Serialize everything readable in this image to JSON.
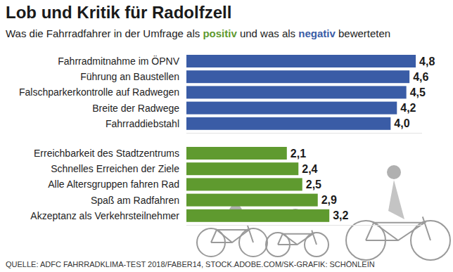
{
  "title": "Lob und Kritik für Radolfzell",
  "subtitle": [
    {
      "text": "Was die Fahrradfahrer in der Umfrage als "
    },
    {
      "text": "positiv",
      "color": "#5f9a2f"
    },
    {
      "text": " und was als "
    },
    {
      "text": "negativ",
      "color": "#3a5ca6"
    },
    {
      "text": " bewerteten"
    }
  ],
  "source": "QUELLE: ADFC FAHRRADKLIMA-TEST 2018/FABER14, STOCK.ADOBE.COM/SK-GRAFIK: SCHÖNLEIN",
  "chart_data": [
    {
      "type": "bar",
      "orientation": "horizontal",
      "categories": [
        "Fahrradmitnahme im ÖPNV",
        "Führung an Baustellen",
        "Falschparkerkontrolle auf Radwegen",
        "Breite der Radwege",
        "Fahrraddiebstahl"
      ],
      "values": [
        4.8,
        4.6,
        4.5,
        4.2,
        4.0
      ],
      "value_labels": [
        "4,8",
        "4,6",
        "4,5",
        "4,2",
        "4,0"
      ],
      "color": "#3a5ca6",
      "xlim": [
        -2.5,
        5.0
      ],
      "data_labels": true,
      "tick_labels": "y",
      "grid": false
    },
    {
      "type": "bar",
      "orientation": "horizontal",
      "categories": [
        "Erreichbarkeit des Stadtzentrums",
        "Schnelles Erreichen der Ziele",
        "Alle Altersgruppen fahren Rad",
        "Spaß am Radfahren",
        "Akzeptanz als Verkehrsteilnehmer"
      ],
      "values": [
        2.1,
        2.4,
        2.5,
        2.9,
        3.2
      ],
      "value_labels": [
        "2,1",
        "2,4",
        "2,5",
        "2,9",
        "3,2"
      ],
      "color": "#5f9a2f",
      "xlim": [
        -0.5,
        5.6
      ],
      "data_labels": true,
      "tick_labels": "y",
      "grid": false
    }
  ]
}
